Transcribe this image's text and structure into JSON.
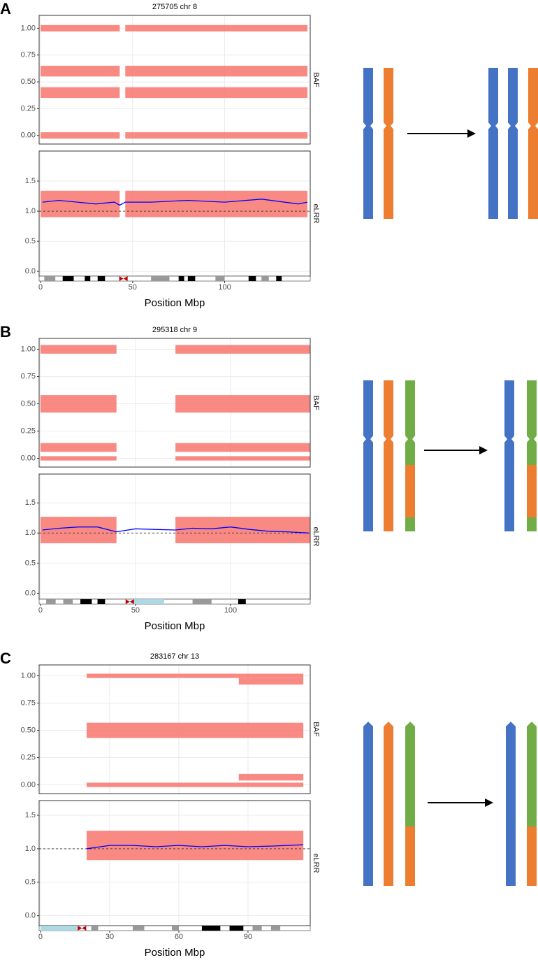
{
  "chart_data": [
    {
      "type": "baf-lrr",
      "panel_label": "A",
      "title": "275705 chr 8",
      "x_label": "Position Mbp",
      "xlim": [
        -0.8,
        146.5
      ],
      "xticks": [
        0,
        50,
        100
      ],
      "baf": {
        "label": "BAF",
        "ylim": [
          -0.08,
          1.12
        ],
        "yticks": [
          {
            "value": 0,
            "label": "0.00"
          },
          {
            "value": 0.25,
            "label": "0.25"
          },
          {
            "value": 0.5,
            "label": "0.50"
          },
          {
            "value": 0.75,
            "label": "0.75"
          },
          {
            "value": 1,
            "label": "1.00"
          }
        ],
        "clusters": [
          {
            "y": 1.0,
            "x": [
              0,
              43
            ],
            "spread": 0.03
          },
          {
            "y": 1.0,
            "x": [
              46,
              145
            ],
            "spread": 0.03
          },
          {
            "y": 0.6,
            "x": [
              0,
              43
            ],
            "spread": 0.05
          },
          {
            "y": 0.6,
            "x": [
              46,
              145
            ],
            "spread": 0.05
          },
          {
            "y": 0.4,
            "x": [
              0,
              43
            ],
            "spread": 0.05
          },
          {
            "y": 0.4,
            "x": [
              46,
              145
            ],
            "spread": 0.05
          },
          {
            "y": 0.0,
            "x": [
              0,
              43
            ],
            "spread": 0.03
          },
          {
            "y": 0.0,
            "x": [
              46,
              145
            ],
            "spread": 0.03
          }
        ]
      },
      "lrr": {
        "label": "eLRR",
        "ylim": [
          -0.08,
          2.0
        ],
        "reference": 1.0,
        "yticks": [
          {
            "value": 0,
            "label": "0.0"
          },
          {
            "value": 0.5,
            "label": "0.5"
          },
          {
            "value": 1,
            "label": "1.0"
          },
          {
            "value": 1.5,
            "label": "1.5"
          }
        ],
        "clusters": [
          {
            "y": 1.12,
            "x": [
              0,
              43
            ],
            "spread": 0.22
          },
          {
            "y": 1.12,
            "x": [
              46,
              145
            ],
            "spread": 0.22
          }
        ],
        "line": {
          "color": "#0000ff",
          "x": [
            1,
            10,
            20,
            30,
            40,
            43,
            46,
            60,
            80,
            100,
            120,
            140,
            145
          ],
          "y": [
            1.15,
            1.18,
            1.15,
            1.12,
            1.15,
            1.1,
            1.15,
            1.15,
            1.18,
            1.15,
            1.2,
            1.12,
            1.15
          ]
        }
      },
      "ideogram": {
        "centromere": 45,
        "bands": [
          {
            "x": [
              2,
              8
            ],
            "color": "#999999"
          },
          {
            "x": [
              12,
              18
            ],
            "color": "#000000"
          },
          {
            "x": [
              24,
              27
            ],
            "color": "#000000"
          },
          {
            "x": [
              31,
              35
            ],
            "color": "#000000"
          },
          {
            "x": [
              60,
              70
            ],
            "color": "#999999"
          },
          {
            "x": [
              75,
              78
            ],
            "color": "#000000"
          },
          {
            "x": [
              80,
              84
            ],
            "color": "#000000"
          },
          {
            "x": [
              95,
              100
            ],
            "color": "#999999"
          },
          {
            "x": [
              113,
              117
            ],
            "color": "#000000"
          },
          {
            "x": [
              120,
              124
            ],
            "color": "#999999"
          },
          {
            "x": [
              128,
              131
            ],
            "color": "#000000"
          }
        ]
      }
    },
    {
      "type": "baf-lrr",
      "panel_label": "B",
      "title": "295318 chr 9",
      "x_label": "Position Mbp",
      "xlim": [
        -0.7,
        141.9
      ],
      "xticks": [
        0,
        50,
        100
      ],
      "baf": {
        "label": "BAF",
        "ylim": [
          -0.08,
          1.1
        ],
        "yticks": [
          {
            "value": 0,
            "label": "0.00"
          },
          {
            "value": 0.25,
            "label": "0.25"
          },
          {
            "value": 0.5,
            "label": "0.50"
          },
          {
            "value": 0.75,
            "label": "0.75"
          },
          {
            "value": 1,
            "label": "1.00"
          }
        ],
        "clusters": [
          {
            "y": 1.0,
            "x": [
              0,
              40
            ],
            "spread": 0.04
          },
          {
            "y": 1.0,
            "x": [
              71,
              142
            ],
            "spread": 0.04
          },
          {
            "y": 0.5,
            "x": [
              0,
              40
            ],
            "spread": 0.08
          },
          {
            "y": 0.5,
            "x": [
              71,
              142
            ],
            "spread": 0.08
          },
          {
            "y": 0.1,
            "x": [
              0,
              40
            ],
            "spread": 0.04
          },
          {
            "y": 0.1,
            "x": [
              71,
              142
            ],
            "spread": 0.04
          },
          {
            "y": 0.0,
            "x": [
              0,
              40
            ],
            "spread": 0.02
          },
          {
            "y": 0.0,
            "x": [
              71,
              142
            ],
            "spread": 0.02
          }
        ]
      },
      "lrr": {
        "label": "eLRR",
        "ylim": [
          -0.1,
          1.98
        ],
        "reference": 1.0,
        "yticks": [
          {
            "value": 0,
            "label": "0.0"
          },
          {
            "value": 0.5,
            "label": "0.5"
          },
          {
            "value": 1,
            "label": "1.0"
          },
          {
            "value": 1.5,
            "label": "1.5"
          }
        ],
        "clusters": [
          {
            "y": 1.05,
            "x": [
              0,
              40
            ],
            "spread": 0.22
          },
          {
            "y": 1.05,
            "x": [
              71,
              142
            ],
            "spread": 0.22
          }
        ],
        "line": {
          "color": "#0000ff",
          "x": [
            1,
            10,
            20,
            30,
            40,
            50,
            60,
            71,
            80,
            90,
            100,
            110,
            120,
            130,
            141
          ],
          "y": [
            1.05,
            1.08,
            1.1,
            1.1,
            1.02,
            1.07,
            1.06,
            1.05,
            1.08,
            1.07,
            1.1,
            1.06,
            1.03,
            1.02,
            1.0
          ]
        }
      },
      "ideogram": {
        "centromere": 47,
        "bands": [
          {
            "x": [
              3,
              8
            ],
            "color": "#999999"
          },
          {
            "x": [
              12,
              17
            ],
            "color": "#999999"
          },
          {
            "x": [
              21,
              27
            ],
            "color": "#000000"
          },
          {
            "x": [
              30,
              34
            ],
            "color": "#000000"
          },
          {
            "x": [
              48,
              65
            ],
            "color": "#add8e6"
          },
          {
            "x": [
              80,
              90
            ],
            "color": "#999999"
          },
          {
            "x": [
              104,
              108
            ],
            "color": "#000000"
          }
        ]
      }
    },
    {
      "type": "baf-lrr",
      "panel_label": "C",
      "title": "283167 chr 13",
      "x_label": "Position Mbp",
      "xlim": [
        -0.6,
        117
      ],
      "xticks": [
        0,
        30,
        60,
        90
      ],
      "baf": {
        "label": "BAF",
        "ylim": [
          -0.08,
          1.1
        ],
        "yticks": [
          {
            "value": 0,
            "label": "0.00"
          },
          {
            "value": 0.25,
            "label": "0.25"
          },
          {
            "value": 0.5,
            "label": "0.50"
          },
          {
            "value": 0.75,
            "label": "0.75"
          },
          {
            "value": 1,
            "label": "1.00"
          }
        ],
        "clusters": [
          {
            "y": 1.0,
            "x": [
              20,
              114
            ],
            "spread": 0.02
          },
          {
            "y": 0.95,
            "x": [
              86,
              114
            ],
            "spread": 0.03
          },
          {
            "y": 0.5,
            "x": [
              20,
              114
            ],
            "spread": 0.07
          },
          {
            "y": 0.07,
            "x": [
              86,
              114
            ],
            "spread": 0.03
          },
          {
            "y": 0.0,
            "x": [
              20,
              114
            ],
            "spread": 0.02
          }
        ]
      },
      "lrr": {
        "label": "eLRR",
        "ylim": [
          -0.15,
          1.72
        ],
        "reference": 1.0,
        "yticks": [
          {
            "value": 0,
            "label": "0.0"
          },
          {
            "value": 0.5,
            "label": "0.5"
          },
          {
            "value": 1,
            "label": "1.0"
          },
          {
            "value": 1.5,
            "label": "1.5"
          }
        ],
        "clusters": [
          {
            "y": 1.05,
            "x": [
              20,
              114
            ],
            "spread": 0.22
          }
        ],
        "line": {
          "color": "#0000ff",
          "x": [
            20,
            30,
            40,
            50,
            60,
            70,
            80,
            90,
            100,
            114
          ],
          "y": [
            1.0,
            1.05,
            1.05,
            1.03,
            1.05,
            1.03,
            1.05,
            1.03,
            1.04,
            1.06
          ]
        }
      },
      "ideogram": {
        "centromere": 18,
        "bands": [
          {
            "x": [
              0,
              17
            ],
            "color": "#add8e6"
          },
          {
            "x": [
              22,
              25
            ],
            "color": "#999999"
          },
          {
            "x": [
              40,
              45
            ],
            "color": "#999999"
          },
          {
            "x": [
              57,
              60
            ],
            "color": "#999999"
          },
          {
            "x": [
              70,
              78
            ],
            "color": "#000000"
          },
          {
            "x": [
              82,
              88
            ],
            "color": "#000000"
          },
          {
            "x": [
              92,
              96
            ],
            "color": "#999999"
          },
          {
            "x": [
              100,
              104
            ],
            "color": "#999999"
          }
        ]
      }
    }
  ]
}
